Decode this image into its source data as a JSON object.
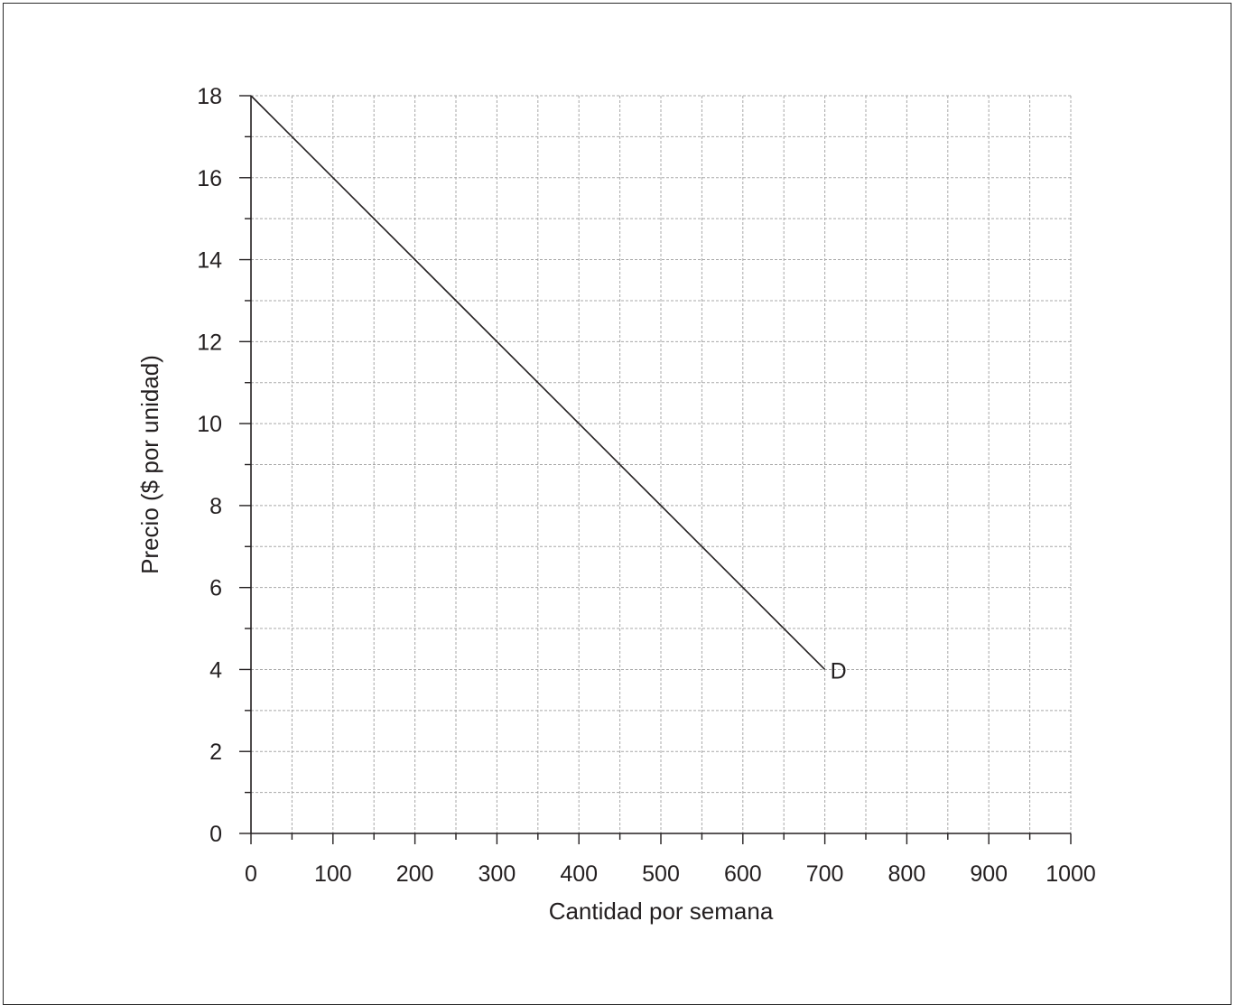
{
  "chart_data": {
    "type": "line",
    "xlabel": "Cantidad por semana",
    "ylabel": "Precio ($ por unidad)",
    "xlim": [
      0,
      1000
    ],
    "ylim": [
      0,
      18
    ],
    "x_ticks": [
      0,
      100,
      200,
      300,
      400,
      500,
      600,
      700,
      800,
      900,
      1000
    ],
    "y_ticks": [
      0,
      2,
      4,
      6,
      8,
      10,
      12,
      14,
      16,
      18
    ],
    "x_grid_step": 50,
    "y_grid_step": 1,
    "grid": true,
    "series": [
      {
        "name": "D",
        "x": [
          0,
          700
        ],
        "y": [
          18,
          4
        ],
        "color": "#231f20"
      }
    ]
  }
}
